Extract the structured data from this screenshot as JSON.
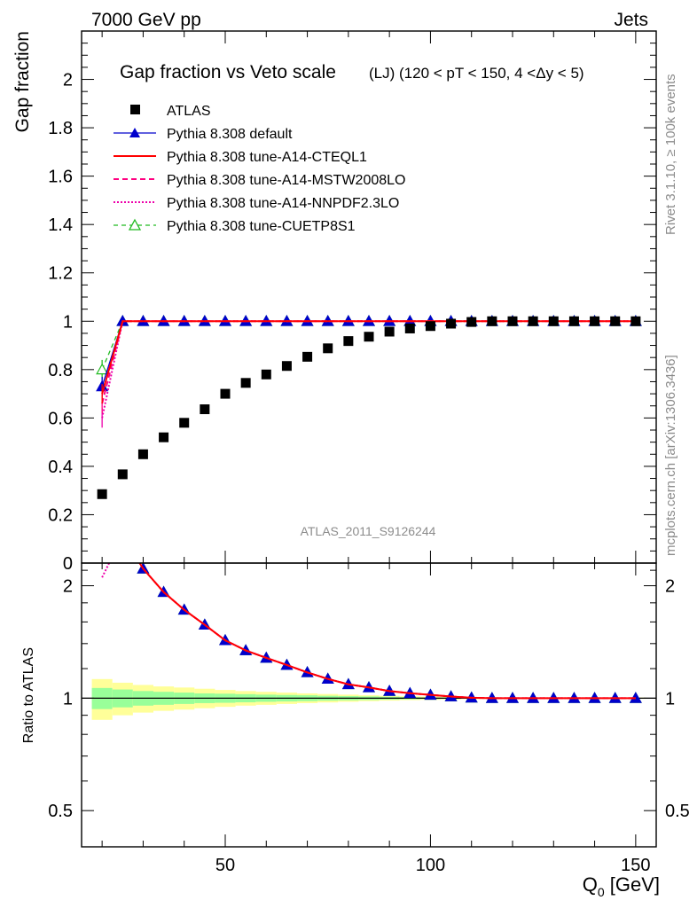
{
  "header": {
    "left": "7000 GeV pp",
    "right": "Jets"
  },
  "side_labels": {
    "rivet": "Rivet 3.1.10, ≥ 100k events",
    "mcplots": "mcplots.cern.ch [arXiv:1306.3436]"
  },
  "watermark": "ATLAS_2011_S9126244",
  "colors": {
    "atlas": "#000000",
    "default": "#0000cc",
    "cteql1": "#ff0000",
    "mstw": "#ff0080",
    "nnpdf": "#ee00aa",
    "cuetp": "#22bb22",
    "band_outer": "#ffff99",
    "band_inner": "#99ff99"
  },
  "chart_data": {
    "type": "scatter",
    "title_main": "Gap fraction vs Veto scale",
    "title_sub": "(LJ) (120 < pT < 150, 4 <Δy < 5)",
    "ylabel": "Gap fraction",
    "xlabel": "Q",
    "xlabel_sub": "0",
    "xlabel_unit": " [GeV]",
    "ratio_ylabel": "Ratio to ATLAS",
    "xlim": [
      15,
      155
    ],
    "ylim": [
      0,
      2.2
    ],
    "ratio_ylim": [
      0.4,
      2.3
    ],
    "ratio_log": true,
    "xticks": [
      50,
      100,
      150
    ],
    "yticks": [
      0,
      0.2,
      0.4,
      0.6,
      0.8,
      1,
      1.2,
      1.4,
      1.6,
      1.8,
      2
    ],
    "ytick_labels": [
      "0",
      "0.2",
      "0.4",
      "0.6",
      "0.8",
      "1",
      "1.2",
      "1.4",
      "1.6",
      "1.8",
      "2"
    ],
    "ratio_yticks": [
      0.5,
      1,
      2
    ],
    "ratio_ytick_labels": [
      "0.5",
      "1",
      "2"
    ],
    "legend_position": "top-left",
    "x": [
      20,
      25,
      30,
      35,
      40,
      45,
      50,
      55,
      60,
      65,
      70,
      75,
      80,
      85,
      90,
      95,
      100,
      105,
      110,
      115,
      120,
      125,
      130,
      135,
      140,
      145,
      150
    ],
    "atlas": {
      "name": "ATLAS",
      "values": [
        0.285,
        0.367,
        0.45,
        0.52,
        0.58,
        0.636,
        0.7,
        0.745,
        0.78,
        0.815,
        0.853,
        0.888,
        0.918,
        0.936,
        0.957,
        0.97,
        0.98,
        0.99,
        0.997,
        1.0,
        1.0,
        1.0,
        1.0,
        1.0,
        1.0,
        1.0,
        1.0
      ],
      "band_inner": [
        0.065,
        0.055,
        0.045,
        0.04,
        0.035,
        0.03,
        0.028,
        0.025,
        0.022,
        0.02,
        0.018,
        0.015,
        0.013,
        0.011,
        0.009,
        0.007,
        0.005,
        0.004,
        0.003,
        0.002,
        0.002,
        0.002,
        0.002,
        0.002,
        0.002,
        0.002,
        0.002
      ],
      "band_outer": [
        0.125,
        0.1,
        0.085,
        0.075,
        0.068,
        0.06,
        0.052,
        0.045,
        0.04,
        0.035,
        0.03,
        0.026,
        0.022,
        0.018,
        0.015,
        0.012,
        0.01,
        0.008,
        0.006,
        0.005,
        0.004,
        0.004,
        0.004,
        0.004,
        0.004,
        0.004,
        0.004
      ]
    },
    "series": [
      {
        "key": "default",
        "name": "Pythia 8.308 default",
        "values": [
          0.73,
          1,
          1,
          1,
          1,
          1,
          1,
          1,
          1,
          1,
          1,
          1,
          1,
          1,
          1,
          1,
          1,
          1,
          1,
          1,
          1,
          1,
          1,
          1,
          1,
          1,
          1
        ]
      },
      {
        "key": "cteql1",
        "name": "Pythia 8.308 tune-A14-CTEQL1",
        "values": [
          0.7,
          1,
          1,
          1,
          1,
          1,
          1,
          1,
          1,
          1,
          1,
          1,
          1,
          1,
          1,
          1,
          1,
          1,
          1,
          1,
          1,
          1,
          1,
          1,
          1,
          1,
          1
        ]
      },
      {
        "key": "mstw",
        "name": "Pythia 8.308 tune-A14-MSTW2008LO",
        "values": [
          0.66,
          1,
          1,
          1,
          1,
          1,
          1,
          1,
          1,
          1,
          1,
          1,
          1,
          1,
          1,
          1,
          1,
          1,
          1,
          1,
          1,
          1,
          1,
          1,
          1,
          1,
          1
        ]
      },
      {
        "key": "nnpdf",
        "name": "Pythia 8.308 tune-A14-NNPDF2.3LO",
        "values": [
          0.6,
          1,
          1,
          1,
          1,
          1,
          1,
          1,
          1,
          1,
          1,
          1,
          1,
          1,
          1,
          1,
          1,
          1,
          1,
          1,
          1,
          1,
          1,
          1,
          1,
          1,
          1
        ]
      },
      {
        "key": "cuetp",
        "name": "Pythia 8.308 tune-CUETP8S1",
        "values": [
          0.8,
          1,
          1,
          1,
          1,
          1,
          1,
          1,
          1,
          1,
          1,
          1,
          1,
          1,
          1,
          1,
          1,
          1,
          1,
          1,
          1,
          1,
          1,
          1,
          1,
          1,
          1
        ]
      }
    ]
  }
}
